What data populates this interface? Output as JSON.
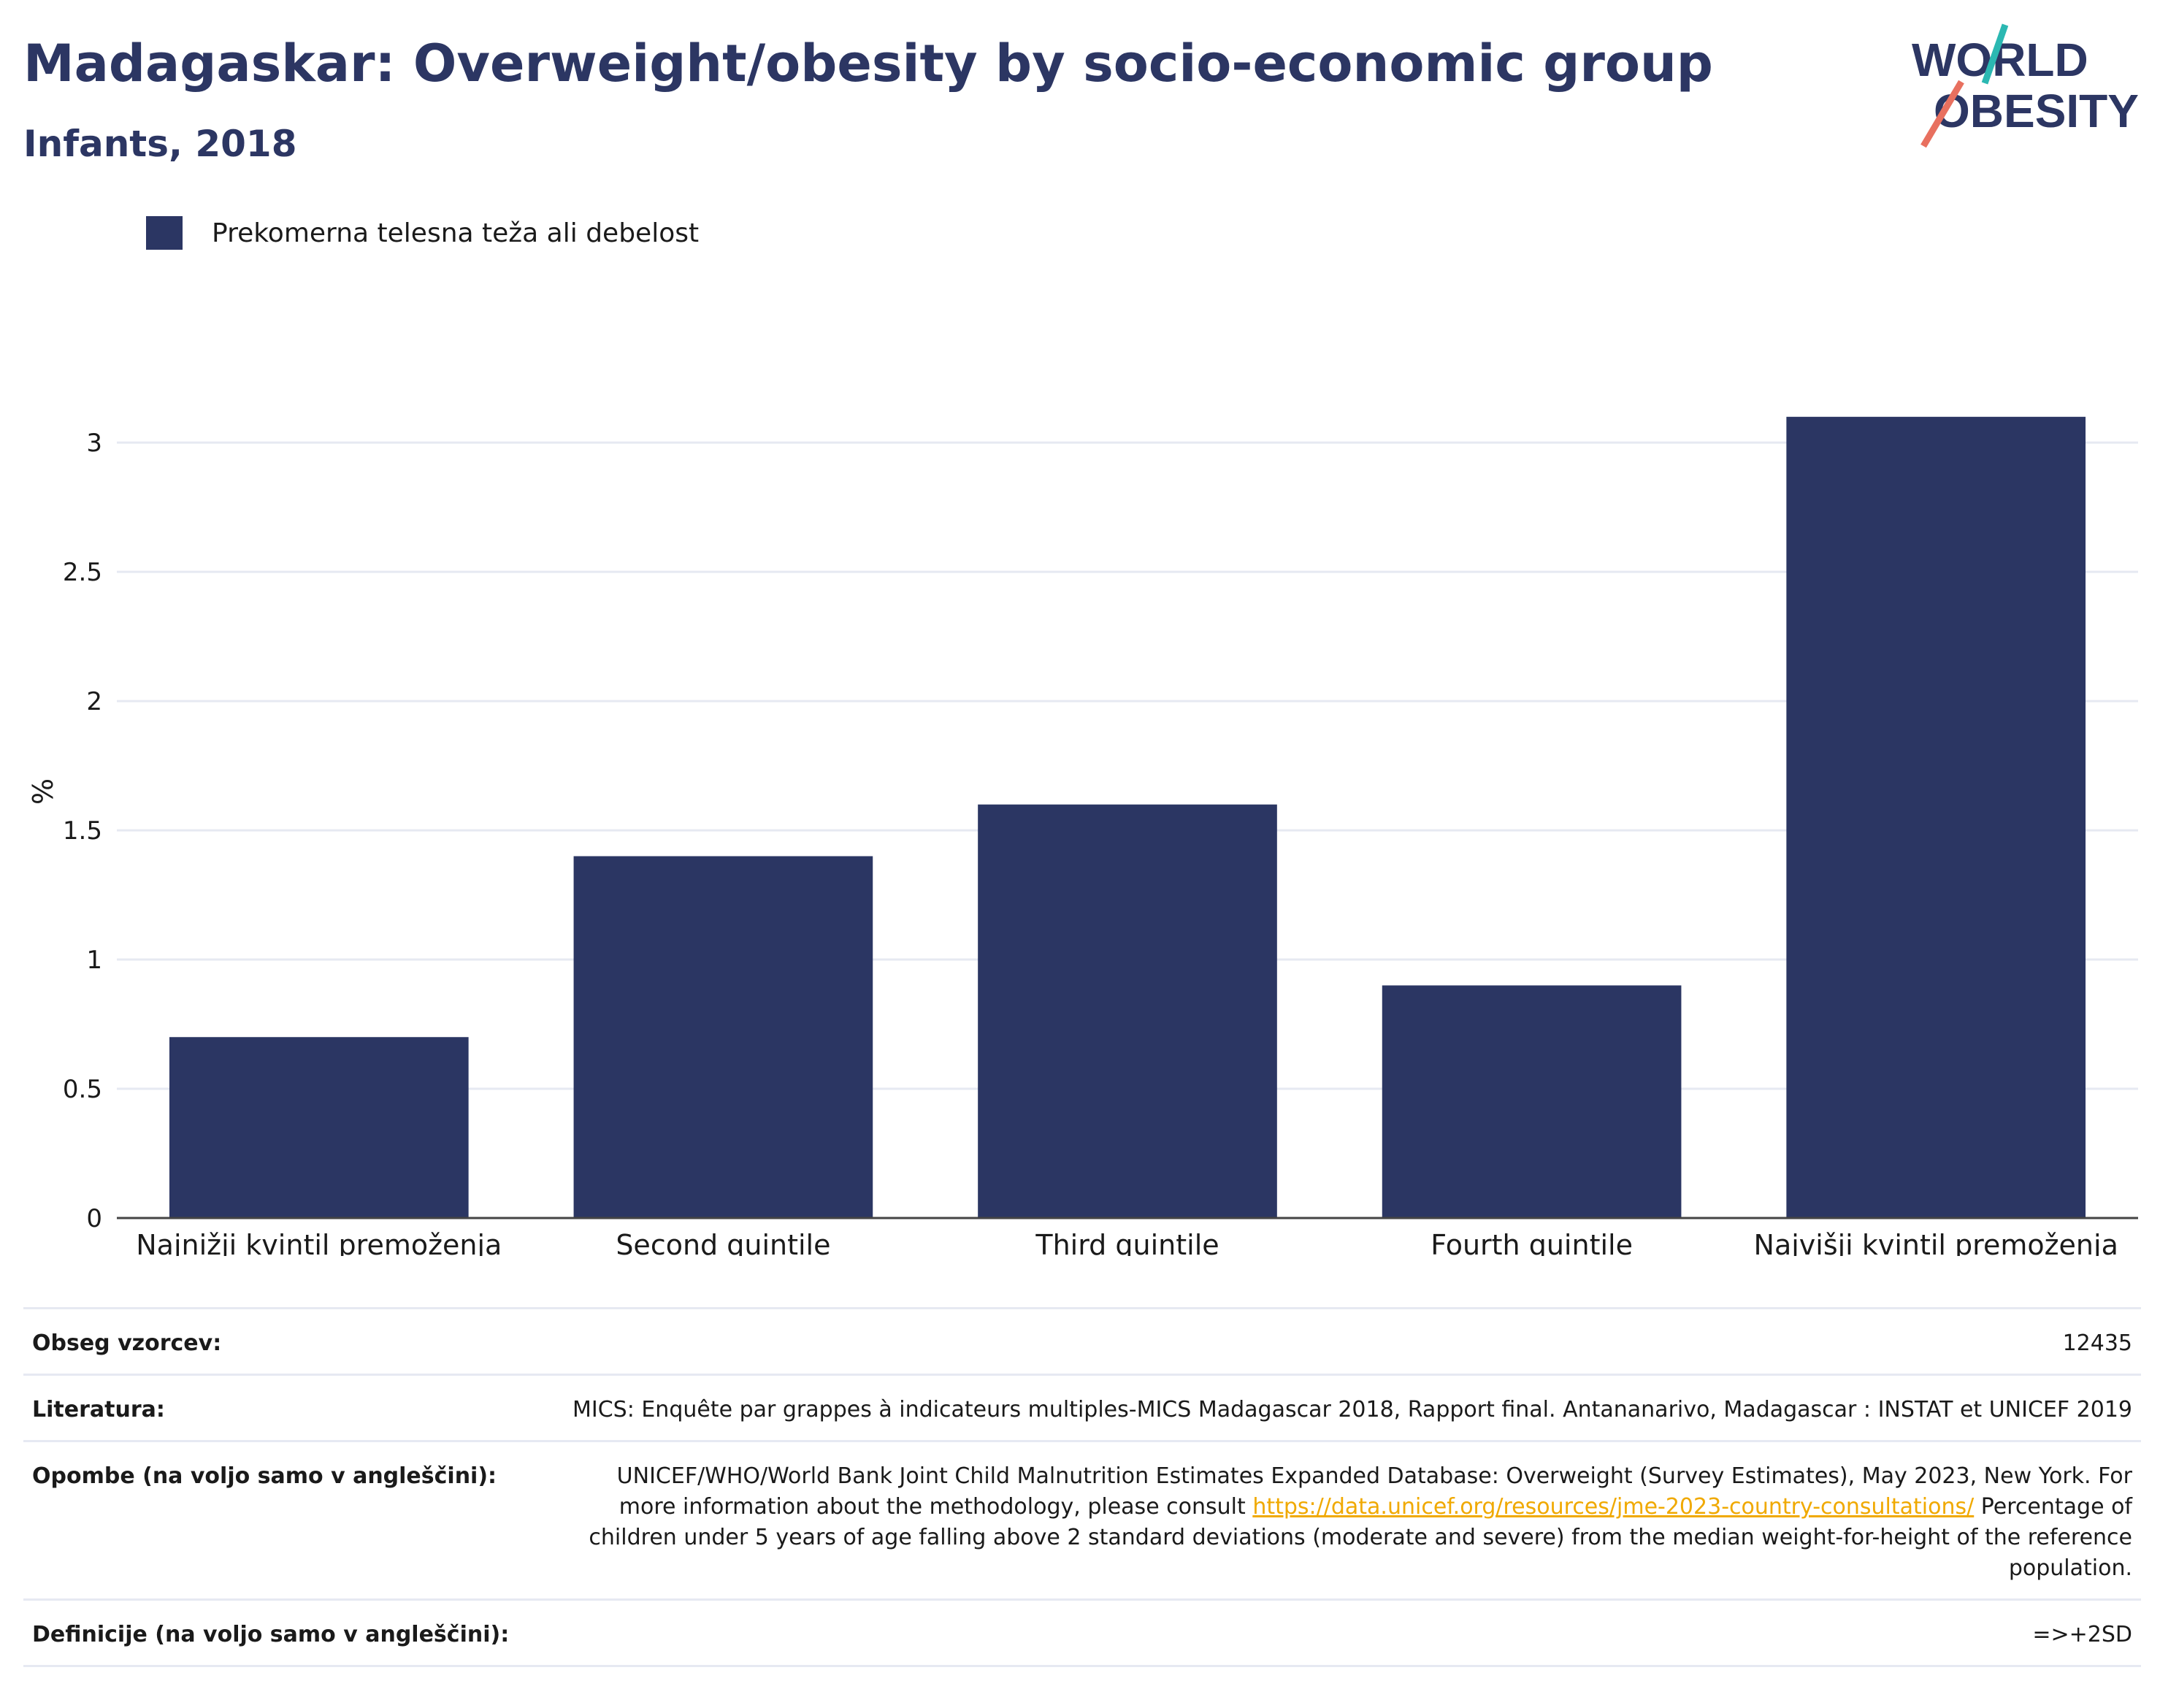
{
  "header": {
    "title": "Madagaskar: Overweight/obesity by socio-economic group",
    "subtitle": "Infants, 2018"
  },
  "logo": {
    "line1": "WORLD",
    "line2": "OBESITY",
    "colors": {
      "text": "#2c3663",
      "teal": "#2bb8b2",
      "coral": "#e8705f"
    }
  },
  "legend": {
    "label": "Prekomerna telesna teža ali debelost"
  },
  "chart_data": {
    "type": "bar",
    "categories": [
      "Najnižji kvintil premoženja",
      "Second quintile",
      "Third quintile",
      "Fourth quintile",
      "Najvišji kvintil premoženja"
    ],
    "series": [
      {
        "name": "Prekomerna telesna teža ali debelost",
        "values": [
          0.7,
          1.4,
          1.6,
          0.9,
          3.1
        ],
        "color": "#2b3663"
      }
    ],
    "ylabel": "%",
    "ylim": [
      0,
      3.3
    ],
    "yticks": [
      0,
      0.5,
      1,
      1.5,
      2,
      2.5,
      3
    ],
    "ytick_labels": [
      "0",
      "0.5",
      "1",
      "1.5",
      "2",
      "2.5",
      "3"
    ],
    "grid": true,
    "legend_position": "top-left"
  },
  "table": {
    "sample": {
      "label": "Obseg vzorcev:",
      "value": "12435"
    },
    "literature": {
      "label": "Literatura:",
      "value": "MICS: Enquête par grappes à indicateurs multiples-MICS Madagascar 2018, Rapport final. Antananarivo, Madagascar : INSTAT et UNICEF 2019"
    },
    "notes": {
      "label": "Opombe (na voljo samo v angleščini):",
      "text1": "UNICEF/WHO/World Bank Joint Child Malnutrition Estimates Expanded Database: Overweight (Survey Estimates), May 2023, New York. For more information about the methodology, please consult ",
      "link": "https://data.unicef.org/resources/jme-2023-country-consultations/",
      "text2": " Percentage of children under 5 years of age falling above 2 standard deviations (moderate and severe) from the median weight-for-height of the reference population."
    },
    "definitions": {
      "label": "Definicije (na voljo samo v angleščini):",
      "value": "=>+2SD"
    }
  }
}
